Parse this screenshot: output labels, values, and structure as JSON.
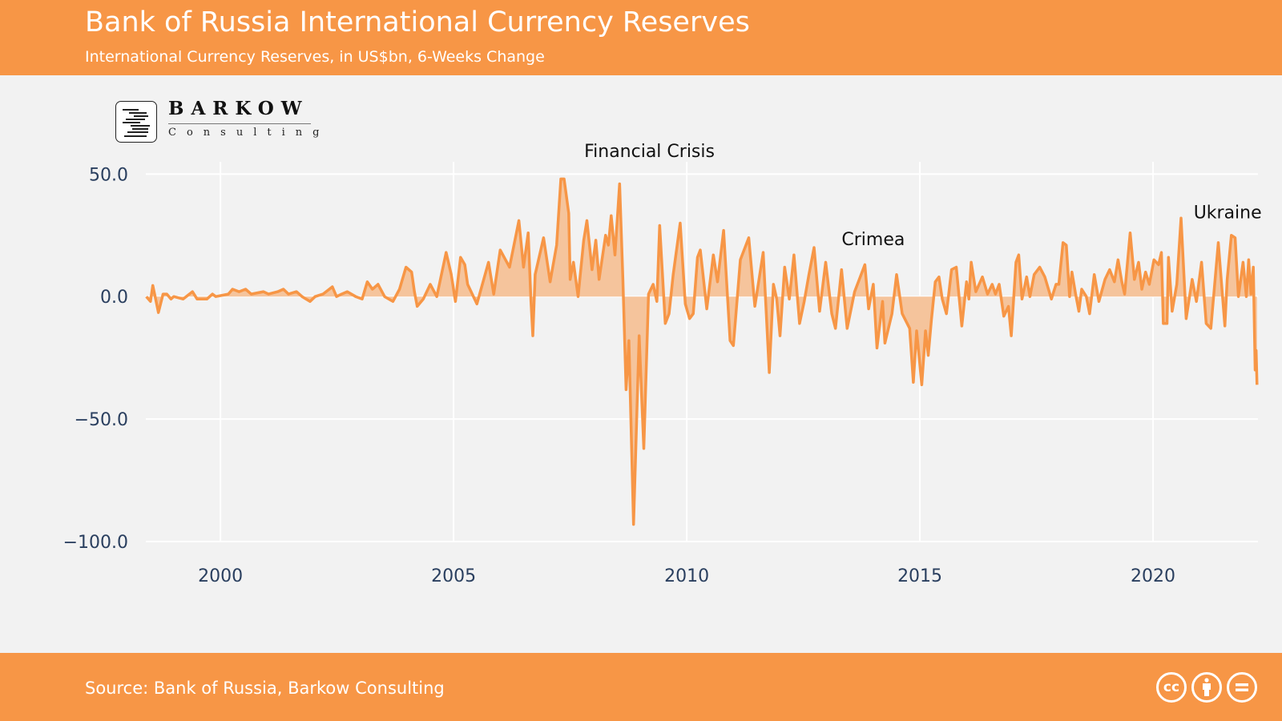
{
  "header": {
    "title": "Bank of Russia International Currency Reserves",
    "subtitle": "International Currency Reserves, in US$bn, 6-Weeks Change"
  },
  "logo": {
    "name": "BARKOW",
    "sub": "Consulting"
  },
  "footer": {
    "source": "Source: Bank of Russia, Barkow Consulting",
    "license_icons": [
      "cc-icon",
      "attribution-icon",
      "no-derivatives-icon"
    ]
  },
  "colors": {
    "brand": "#f79646",
    "fill": "#f5c49c",
    "background": "#f2f2f2",
    "tick": "#2a3f5f"
  },
  "chart_data": {
    "type": "area",
    "title": "",
    "xlabel": "",
    "ylabel": "",
    "xlim": [
      1998.4,
      2022.25
    ],
    "ylim": [
      -100,
      55
    ],
    "grid": true,
    "legend": "none",
    "x_ticks": [
      {
        "value": 2000,
        "label": "2000"
      },
      {
        "value": 2005,
        "label": "2005"
      },
      {
        "value": 2010,
        "label": "2010"
      },
      {
        "value": 2015,
        "label": "2015"
      },
      {
        "value": 2020,
        "label": "2020"
      }
    ],
    "y_ticks": [
      {
        "value": 50,
        "label": "50.0"
      },
      {
        "value": 0,
        "label": "0.0"
      },
      {
        "value": -50,
        "label": "−50.0"
      },
      {
        "value": -100,
        "label": "−100.0"
      }
    ],
    "annotations": [
      {
        "text": "Financial Crisis",
        "x": 2009.2,
        "y": 57
      },
      {
        "text": "Crimea",
        "x": 2014.0,
        "y": 21
      },
      {
        "text": "Ukraine",
        "x": 2021.6,
        "y": 32
      }
    ],
    "series": [
      {
        "x": [
          1998.41,
          1998.5,
          1998.55,
          1998.6,
          1998.67,
          1998.77,
          1998.85,
          1998.94,
          1999.0,
          1999.2,
          1999.4,
          1999.5,
          1999.71,
          1999.83,
          1999.9,
          2000.17,
          2000.26,
          2000.4,
          2000.54,
          2000.66,
          2000.92,
          2001.03,
          2001.23,
          2001.35,
          2001.46,
          2001.63,
          2001.75,
          2001.92,
          2002.03,
          2002.2,
          2002.4,
          2002.49,
          2002.6,
          2002.72,
          2002.9,
          2003.04,
          2003.15,
          2003.26,
          2003.38,
          2003.52,
          2003.7,
          2003.84,
          2003.98,
          2004.1,
          2004.16,
          2004.22,
          2004.35,
          2004.5,
          2004.64,
          2004.84,
          2004.95,
          2005.04,
          2005.15,
          2005.24,
          2005.3,
          2005.5,
          2005.75,
          2005.86,
          2006.0,
          2006.2,
          2006.4,
          2006.5,
          2006.6,
          2006.66,
          2006.7,
          2006.75,
          2006.93,
          2007.07,
          2007.21,
          2007.3,
          2007.37,
          2007.47,
          2007.5,
          2007.57,
          2007.67,
          2007.79,
          2007.86,
          2007.97,
          2008.05,
          2008.12,
          2008.26,
          2008.32,
          2008.38,
          2008.46,
          2008.56,
          2008.63,
          2008.7,
          2008.76,
          2008.86,
          2008.98,
          2009.08,
          2009.18,
          2009.28,
          2009.36,
          2009.42,
          2009.54,
          2009.62,
          2009.71,
          2009.86,
          2009.97,
          2010.06,
          2010.14,
          2010.23,
          2010.29,
          2010.43,
          2010.57,
          2010.66,
          2010.79,
          2010.93,
          2011.0,
          2011.15,
          2011.33,
          2011.46,
          2011.64,
          2011.77,
          2011.86,
          2011.93,
          2012.0,
          2012.1,
          2012.2,
          2012.3,
          2012.42,
          2012.52,
          2012.62,
          2012.73,
          2012.85,
          2012.98,
          2013.11,
          2013.19,
          2013.32,
          2013.44,
          2013.6,
          2013.72,
          2013.82,
          2013.9,
          2014.0,
          2014.08,
          2014.2,
          2014.25,
          2014.4,
          2014.5,
          2014.62,
          2014.78,
          2014.86,
          2014.93,
          2015.04,
          2015.12,
          2015.18,
          2015.25,
          2015.33,
          2015.41,
          2015.48,
          2015.57,
          2015.68,
          2015.78,
          2015.9,
          2016.0,
          2016.05,
          2016.1,
          2016.2,
          2016.34,
          2016.45,
          2016.55,
          2016.62,
          2016.7,
          2016.8,
          2016.9,
          2016.96,
          2017.06,
          2017.12,
          2017.19,
          2017.29,
          2017.36,
          2017.45,
          2017.57,
          2017.68,
          2017.82,
          2017.92,
          2017.98,
          2018.07,
          2018.14,
          2018.21,
          2018.26,
          2018.34,
          2018.41,
          2018.47,
          2018.57,
          2018.64,
          2018.74,
          2018.84,
          2018.97,
          2019.07,
          2019.17,
          2019.25,
          2019.33,
          2019.39,
          2019.51,
          2019.6,
          2019.69,
          2019.76,
          2019.84,
          2019.92,
          2020.02,
          2020.12,
          2020.18,
          2020.22,
          2020.3,
          2020.33,
          2020.41,
          2020.51,
          2020.6,
          2020.71,
          2020.84,
          2020.93,
          2021.04,
          2021.14,
          2021.24,
          2021.4,
          2021.54,
          2021.59,
          2021.68,
          2021.76,
          2021.83,
          2021.93,
          2022.0,
          2022.05,
          2022.1,
          2022.15,
          2022.19,
          2022.21,
          2022.23
        ],
        "y": [
          0,
          -2,
          4.5,
          0,
          -6.5,
          1,
          1,
          -1,
          0,
          -1,
          2,
          -1,
          -1,
          1,
          0,
          1,
          3,
          2,
          3,
          1,
          2,
          1,
          2,
          3,
          1,
          2,
          0,
          -2,
          0,
          1,
          4,
          0,
          1,
          2,
          0,
          -1,
          6,
          3,
          5,
          0,
          -2,
          3,
          12,
          10,
          2,
          -4,
          -1,
          5,
          0,
          18,
          9,
          -2,
          16,
          13,
          5,
          -3,
          14,
          1,
          19,
          12,
          31,
          12,
          26,
          -2,
          -16,
          9,
          24,
          6,
          21,
          48,
          48,
          34,
          7,
          14,
          0,
          23,
          31,
          11,
          23,
          7,
          25,
          21,
          33,
          17,
          46,
          7,
          -38,
          -18,
          -93,
          -16,
          -62,
          1,
          5,
          -2,
          29,
          -11,
          -7,
          9,
          30,
          -3,
          -9,
          -7,
          16,
          19,
          -5,
          17,
          6,
          27,
          -18,
          -20,
          15,
          24,
          -4,
          18,
          -31,
          5,
          -1,
          -16,
          12,
          -1,
          17,
          -11,
          -2,
          9,
          20,
          -6,
          14,
          -7,
          -13,
          11,
          -13,
          2,
          8,
          13,
          -5,
          5,
          -21,
          -2,
          -19,
          -7,
          9,
          -7,
          -13,
          -35,
          -14,
          -36,
          -14,
          -24,
          -9,
          6,
          8,
          -1,
          -7,
          11,
          12,
          -12,
          6,
          -1,
          14,
          2,
          8,
          1,
          5,
          1,
          5,
          -8,
          -4,
          -16,
          14,
          17,
          -1,
          8,
          0,
          9,
          12,
          8,
          -1,
          5,
          5,
          22,
          21,
          0,
          10,
          1,
          -6,
          3,
          0,
          -7,
          9,
          -2,
          7,
          11,
          6,
          15,
          6,
          1,
          26,
          7,
          14,
          3,
          10,
          5,
          15,
          13,
          18,
          -11,
          -11,
          16,
          -6,
          5,
          32,
          -9,
          7,
          -2,
          14,
          -11,
          -13,
          22,
          -12,
          7,
          25,
          24,
          0,
          14,
          0,
          15,
          1,
          12,
          -30,
          -22,
          -36
        ]
      }
    ]
  }
}
